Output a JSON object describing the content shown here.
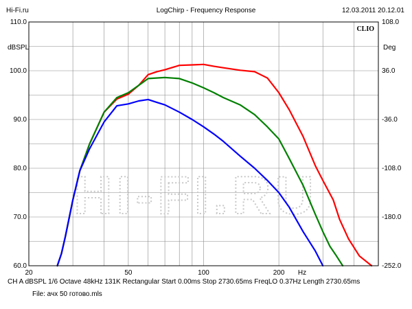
{
  "header": {
    "left": "Hi-Fi.ru",
    "center": "LogChirp - Frequency Response",
    "right": "12.03.2011 20.12.01"
  },
  "brand": "CLIO",
  "watermark": "HI-FI.RU",
  "footer": {
    "line1": "CH A   dBSPL   1/6 Octave   48kHz   131K   Rectangular   Start 0.00ms   Stop 2730.65ms   FreqLO 0.37Hz   Length 2730.65ms",
    "line2": "File: ачх 50 готово.mls"
  },
  "chart_data": {
    "type": "line",
    "title": "LogChirp - Frequency Response",
    "xlabel": "Hz",
    "ylabel": "dBSPL",
    "y2label": "Deg",
    "xscale": "log",
    "xlim": [
      20,
      500
    ],
    "ylim": [
      60,
      110
    ],
    "y2lim": [
      -252,
      108
    ],
    "grid": true,
    "x_ticks": [
      {
        "value": 20,
        "label": "20"
      },
      {
        "value": 50,
        "label": "50"
      },
      {
        "value": 100,
        "label": "100"
      },
      {
        "value": 200,
        "label": "200"
      }
    ],
    "y_ticks": [
      {
        "value": 60,
        "label": "60.0"
      },
      {
        "value": 70,
        "label": "70.0"
      },
      {
        "value": 80,
        "label": "80.0"
      },
      {
        "value": 90,
        "label": "90.0"
      },
      {
        "value": 100,
        "label": "100.0"
      },
      {
        "value": 110,
        "label": "110.0"
      }
    ],
    "y2_ticks": [
      {
        "value": -252,
        "label": "-252.0"
      },
      {
        "value": -180,
        "label": "-180.0"
      },
      {
        "value": -108,
        "label": "-108.0"
      },
      {
        "value": -36,
        "label": "-36.0"
      },
      {
        "value": 36,
        "label": "36.0"
      },
      {
        "value": 108,
        "label": "108.0"
      }
    ],
    "series": [
      {
        "color": "#ff0000",
        "points": [
          [
            26,
            60
          ],
          [
            27,
            62.5
          ],
          [
            28,
            66
          ],
          [
            30,
            73.5
          ],
          [
            32,
            79.5
          ],
          [
            35,
            85
          ],
          [
            40,
            91.5
          ],
          [
            45,
            94.2
          ],
          [
            50,
            95.2
          ],
          [
            55,
            97
          ],
          [
            60,
            99.2
          ],
          [
            65,
            99.8
          ],
          [
            70,
            100.2
          ],
          [
            80,
            101.1
          ],
          [
            90,
            101.2
          ],
          [
            100,
            101.3
          ],
          [
            110,
            100.9
          ],
          [
            120,
            100.6
          ],
          [
            140,
            100.1
          ],
          [
            160,
            99.8
          ],
          [
            180,
            98.5
          ],
          [
            200,
            95.5
          ],
          [
            220,
            92
          ],
          [
            250,
            86.5
          ],
          [
            280,
            80.5
          ],
          [
            300,
            77.5
          ],
          [
            330,
            73.5
          ],
          [
            350,
            69.5
          ],
          [
            380,
            65.5
          ],
          [
            420,
            62
          ],
          [
            470,
            60
          ]
        ]
      },
      {
        "color": "#008000",
        "points": [
          [
            26,
            60
          ],
          [
            27,
            62.5
          ],
          [
            28,
            66
          ],
          [
            30,
            73.5
          ],
          [
            32,
            79.5
          ],
          [
            35,
            85
          ],
          [
            40,
            91.5
          ],
          [
            45,
            94.5
          ],
          [
            50,
            95.5
          ],
          [
            55,
            97
          ],
          [
            60,
            98.4
          ],
          [
            70,
            98.6
          ],
          [
            80,
            98.4
          ],
          [
            90,
            97.5
          ],
          [
            100,
            96.5
          ],
          [
            110,
            95.5
          ],
          [
            120,
            94.5
          ],
          [
            140,
            93
          ],
          [
            160,
            91
          ],
          [
            180,
            88.5
          ],
          [
            200,
            86
          ],
          [
            220,
            82
          ],
          [
            250,
            76.5
          ],
          [
            280,
            70.5
          ],
          [
            300,
            67
          ],
          [
            320,
            64
          ],
          [
            340,
            62
          ],
          [
            360,
            60
          ]
        ]
      },
      {
        "color": "#0000ff",
        "points": [
          [
            26,
            60
          ],
          [
            27,
            62.5
          ],
          [
            28,
            66
          ],
          [
            30,
            73.5
          ],
          [
            32,
            79.5
          ],
          [
            35,
            84
          ],
          [
            40,
            89.5
          ],
          [
            45,
            92.8
          ],
          [
            50,
            93.2
          ],
          [
            55,
            93.8
          ],
          [
            60,
            94.1
          ],
          [
            65,
            93.5
          ],
          [
            70,
            93
          ],
          [
            80,
            91.5
          ],
          [
            90,
            90
          ],
          [
            100,
            88.5
          ],
          [
            110,
            87
          ],
          [
            120,
            85.5
          ],
          [
            140,
            82.5
          ],
          [
            160,
            80
          ],
          [
            180,
            77.5
          ],
          [
            200,
            75
          ],
          [
            220,
            72
          ],
          [
            250,
            67
          ],
          [
            280,
            63
          ],
          [
            300,
            60
          ]
        ]
      }
    ]
  }
}
